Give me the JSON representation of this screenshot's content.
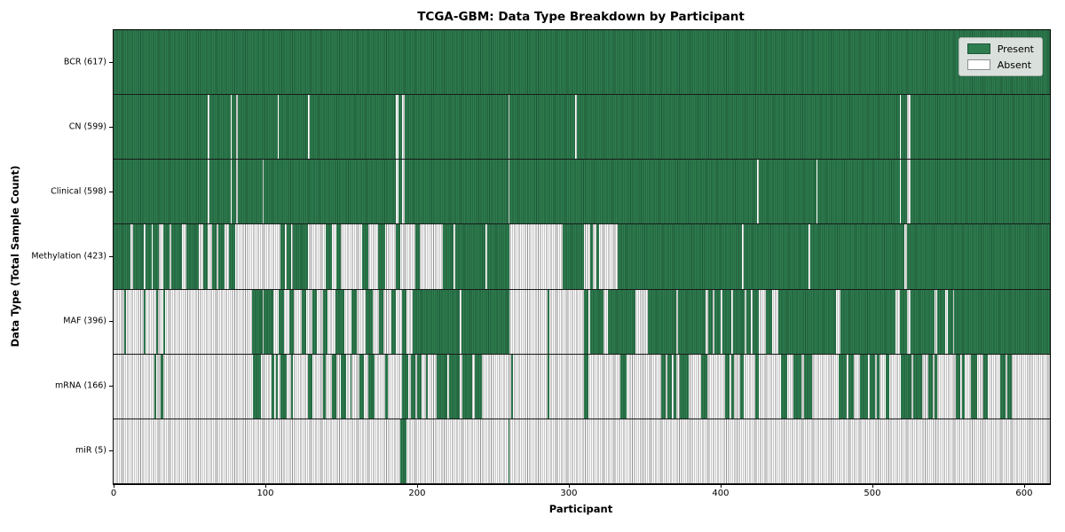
{
  "title": "TCGA-GBM: Data Type Breakdown by Participant",
  "xlabel": "Participant",
  "ylabel": "Data Type (Total Sample Count)",
  "legend": {
    "present_label": "Present",
    "absent_label": "Absent"
  },
  "colors": {
    "present": "#2e7d4f",
    "present_edge": "#1d5637",
    "absent": "#ffffff",
    "absent_edge": "#8f8f8f",
    "frame": "#000000",
    "legend_bg": "#e9e9e9"
  },
  "chart_data": {
    "type": "heatmap",
    "title": "TCGA-GBM: Data Type Breakdown by Participant",
    "xlabel": "Participant",
    "ylabel": "Data Type (Total Sample Count)",
    "legend": [
      "Present",
      "Absent"
    ],
    "legend_position": "upper right",
    "x_ticks": [
      0,
      100,
      200,
      300,
      400,
      500,
      600
    ],
    "x_max": 617,
    "rows": [
      {
        "data_type": "BCR",
        "total": 617,
        "label": "BCR (617)",
        "present_runs": [
          [
            0,
            617
          ]
        ]
      },
      {
        "data_type": "CN",
        "total": 599,
        "label": "CN (599)",
        "present_runs": [
          [
            0,
            62
          ],
          [
            63,
            77
          ],
          [
            78,
            81
          ],
          [
            82,
            108
          ],
          [
            109,
            128
          ],
          [
            129,
            186
          ],
          [
            188,
            190
          ],
          [
            192,
            260
          ],
          [
            261,
            304
          ],
          [
            305,
            518
          ],
          [
            519,
            523
          ],
          [
            525,
            617
          ]
        ]
      },
      {
        "data_type": "Clinical",
        "total": 598,
        "label": "Clinical (598)",
        "present_runs": [
          [
            0,
            62
          ],
          [
            63,
            77
          ],
          [
            78,
            81
          ],
          [
            82,
            98
          ],
          [
            99,
            186
          ],
          [
            188,
            190
          ],
          [
            192,
            260
          ],
          [
            261,
            424
          ],
          [
            425,
            463
          ],
          [
            464,
            518
          ],
          [
            519,
            523
          ],
          [
            525,
            617
          ]
        ]
      },
      {
        "data_type": "Methylation",
        "total": 423,
        "label": "Methylation (423)",
        "present_runs": [
          [
            0,
            11
          ],
          [
            13,
            20
          ],
          [
            21,
            25
          ],
          [
            26,
            30
          ],
          [
            33,
            37
          ],
          [
            38,
            45
          ],
          [
            48,
            56
          ],
          [
            59,
            62
          ],
          [
            65,
            68
          ],
          [
            69,
            73
          ],
          [
            76,
            80
          ],
          [
            110,
            113
          ],
          [
            114,
            117
          ],
          [
            118,
            128
          ],
          [
            140,
            144
          ],
          [
            147,
            150
          ],
          [
            164,
            168
          ],
          [
            174,
            179
          ],
          [
            186,
            189
          ],
          [
            199,
            202
          ],
          [
            217,
            224
          ],
          [
            225,
            245
          ],
          [
            246,
            261
          ],
          [
            296,
            310
          ],
          [
            314,
            316
          ],
          [
            318,
            320
          ],
          [
            332,
            414
          ],
          [
            415,
            458
          ],
          [
            459,
            521
          ],
          [
            523,
            617
          ]
        ]
      },
      {
        "data_type": "MAF",
        "total": 396,
        "label": "MAF (396)",
        "present_runs": [
          [
            7,
            8
          ],
          [
            20,
            21
          ],
          [
            28,
            29
          ],
          [
            33,
            34
          ],
          [
            91,
            98
          ],
          [
            99,
            105
          ],
          [
            109,
            112
          ],
          [
            116,
            119
          ],
          [
            124,
            127
          ],
          [
            131,
            134
          ],
          [
            138,
            141
          ],
          [
            146,
            152
          ],
          [
            157,
            160
          ],
          [
            166,
            171
          ],
          [
            175,
            178
          ],
          [
            183,
            186
          ],
          [
            190,
            193
          ],
          [
            197,
            228
          ],
          [
            229,
            261
          ],
          [
            286,
            287
          ],
          [
            310,
            313
          ],
          [
            314,
            323
          ],
          [
            326,
            344
          ],
          [
            352,
            371
          ],
          [
            372,
            390
          ],
          [
            392,
            395
          ],
          [
            396,
            400
          ],
          [
            401,
            407
          ],
          [
            408,
            416
          ],
          [
            417,
            420
          ],
          [
            421,
            425
          ],
          [
            430,
            434
          ],
          [
            438,
            476
          ],
          [
            479,
            515
          ],
          [
            518,
            523
          ],
          [
            525,
            541
          ],
          [
            543,
            548
          ],
          [
            550,
            553
          ],
          [
            554,
            617
          ]
        ]
      },
      {
        "data_type": "mRNA",
        "total": 166,
        "label": "mRNA (166)",
        "present_runs": [
          [
            27,
            28
          ],
          [
            31,
            33
          ],
          [
            92,
            97
          ],
          [
            104,
            106
          ],
          [
            107,
            108
          ],
          [
            110,
            114
          ],
          [
            117,
            118
          ],
          [
            128,
            131
          ],
          [
            138,
            140
          ],
          [
            144,
            147
          ],
          [
            150,
            153
          ],
          [
            156,
            157
          ],
          [
            162,
            165
          ],
          [
            168,
            172
          ],
          [
            179,
            181
          ],
          [
            190,
            194
          ],
          [
            196,
            199
          ],
          [
            200,
            203
          ],
          [
            206,
            207
          ],
          [
            213,
            220
          ],
          [
            221,
            228
          ],
          [
            230,
            236
          ],
          [
            238,
            243
          ],
          [
            262,
            263
          ],
          [
            286,
            287
          ],
          [
            310,
            313
          ],
          [
            334,
            338
          ],
          [
            361,
            364
          ],
          [
            365,
            368
          ],
          [
            369,
            371
          ],
          [
            373,
            379
          ],
          [
            387,
            391
          ],
          [
            403,
            406
          ],
          [
            407,
            409
          ],
          [
            413,
            415
          ],
          [
            423,
            425
          ],
          [
            440,
            444
          ],
          [
            448,
            453
          ],
          [
            455,
            460
          ],
          [
            478,
            483
          ],
          [
            484,
            488
          ],
          [
            492,
            497
          ],
          [
            498,
            502
          ],
          [
            503,
            505
          ],
          [
            509,
            511
          ],
          [
            519,
            526
          ],
          [
            527,
            533
          ],
          [
            537,
            540
          ],
          [
            541,
            543
          ],
          [
            555,
            558
          ],
          [
            559,
            561
          ],
          [
            565,
            569
          ],
          [
            573,
            576
          ],
          [
            584,
            588
          ],
          [
            589,
            592
          ]
        ]
      },
      {
        "data_type": "miR",
        "total": 5,
        "label": "miR (5)",
        "present_runs": [
          [
            189,
            193
          ],
          [
            260,
            261
          ]
        ]
      }
    ]
  }
}
